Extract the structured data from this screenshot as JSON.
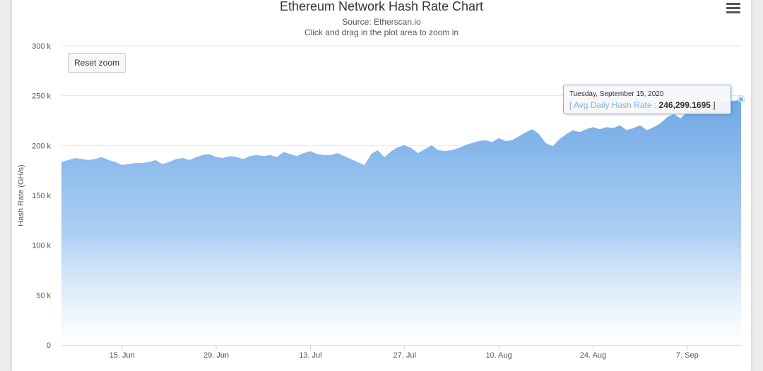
{
  "chart_data": {
    "type": "area",
    "title": "Ethereum Network Hash Rate Chart",
    "subtitle_source": "Source: Etherscan.io",
    "subtitle_hint": "Click and drag in the plot area to zoom in",
    "ylabel": "Hash Rate (GH/s)",
    "ylim": [
      0,
      300000
    ],
    "yticks": [
      {
        "value": 0,
        "label": "0"
      },
      {
        "value": 50000,
        "label": "50 k"
      },
      {
        "value": 100000,
        "label": "100 k"
      },
      {
        "value": 150000,
        "label": "150 k"
      },
      {
        "value": 200000,
        "label": "200 k"
      },
      {
        "value": 250000,
        "label": "250 k"
      },
      {
        "value": 300000,
        "label": "300 k"
      }
    ],
    "xlim": [
      "2020-06-06",
      "2020-09-15"
    ],
    "xticks": [
      {
        "date": "2020-06-15",
        "label": "15. Jun"
      },
      {
        "date": "2020-06-29",
        "label": "29. Jun"
      },
      {
        "date": "2020-07-13",
        "label": "13. Jul"
      },
      {
        "date": "2020-07-27",
        "label": "27. Jul"
      },
      {
        "date": "2020-08-10",
        "label": "10. Aug"
      },
      {
        "date": "2020-08-24",
        "label": "24. Aug"
      },
      {
        "date": "2020-09-07",
        "label": "7. Sep"
      }
    ],
    "grid": true,
    "legend": "none",
    "series": [
      {
        "name": "Avg Daily Hash Rate",
        "color": "#7cb5ec",
        "points": [
          [
            "2020-06-06",
            184000
          ],
          [
            "2020-06-07",
            186000
          ],
          [
            "2020-06-08",
            188000
          ],
          [
            "2020-06-09",
            187000
          ],
          [
            "2020-06-10",
            186000
          ],
          [
            "2020-06-11",
            187000
          ],
          [
            "2020-06-12",
            189000
          ],
          [
            "2020-06-13",
            186000
          ],
          [
            "2020-06-14",
            184000
          ],
          [
            "2020-06-15",
            181000
          ],
          [
            "2020-06-16",
            182000
          ],
          [
            "2020-06-17",
            183000
          ],
          [
            "2020-06-18",
            183000
          ],
          [
            "2020-06-19",
            184000
          ],
          [
            "2020-06-20",
            186000
          ],
          [
            "2020-06-21",
            182000
          ],
          [
            "2020-06-22",
            184000
          ],
          [
            "2020-06-23",
            187000
          ],
          [
            "2020-06-24",
            188000
          ],
          [
            "2020-06-25",
            186000
          ],
          [
            "2020-06-26",
            189000
          ],
          [
            "2020-06-27",
            191000
          ],
          [
            "2020-06-28",
            192000
          ],
          [
            "2020-06-29",
            189000
          ],
          [
            "2020-06-30",
            188000
          ],
          [
            "2020-07-01",
            190000
          ],
          [
            "2020-07-02",
            189000
          ],
          [
            "2020-07-03",
            187000
          ],
          [
            "2020-07-04",
            190000
          ],
          [
            "2020-07-05",
            191000
          ],
          [
            "2020-07-06",
            190000
          ],
          [
            "2020-07-07",
            191000
          ],
          [
            "2020-07-08",
            189000
          ],
          [
            "2020-07-09",
            194000
          ],
          [
            "2020-07-10",
            192000
          ],
          [
            "2020-07-11",
            190000
          ],
          [
            "2020-07-12",
            193000
          ],
          [
            "2020-07-13",
            195000
          ],
          [
            "2020-07-14",
            192000
          ],
          [
            "2020-07-15",
            191000
          ],
          [
            "2020-07-16",
            191000
          ],
          [
            "2020-07-17",
            193000
          ],
          [
            "2020-07-18",
            190000
          ],
          [
            "2020-07-19",
            187000
          ],
          [
            "2020-07-20",
            184000
          ],
          [
            "2020-07-21",
            181000
          ],
          [
            "2020-07-22",
            192000
          ],
          [
            "2020-07-23",
            196000
          ],
          [
            "2020-07-24",
            189000
          ],
          [
            "2020-07-25",
            195000
          ],
          [
            "2020-07-26",
            199000
          ],
          [
            "2020-07-27",
            201000
          ],
          [
            "2020-07-28",
            198000
          ],
          [
            "2020-07-29",
            193000
          ],
          [
            "2020-07-30",
            197000
          ],
          [
            "2020-07-31",
            201000
          ],
          [
            "2020-08-01",
            196000
          ],
          [
            "2020-08-02",
            195000
          ],
          [
            "2020-08-03",
            196000
          ],
          [
            "2020-08-04",
            198000
          ],
          [
            "2020-08-05",
            201000
          ],
          [
            "2020-08-06",
            203000
          ],
          [
            "2020-08-07",
            205000
          ],
          [
            "2020-08-08",
            206000
          ],
          [
            "2020-08-09",
            204000
          ],
          [
            "2020-08-10",
            208000
          ],
          [
            "2020-08-11",
            205000
          ],
          [
            "2020-08-12",
            206000
          ],
          [
            "2020-08-13",
            210000
          ],
          [
            "2020-08-14",
            214000
          ],
          [
            "2020-08-15",
            217000
          ],
          [
            "2020-08-16",
            212000
          ],
          [
            "2020-08-17",
            203000
          ],
          [
            "2020-08-18",
            200000
          ],
          [
            "2020-08-19",
            207000
          ],
          [
            "2020-08-20",
            212000
          ],
          [
            "2020-08-21",
            216000
          ],
          [
            "2020-08-22",
            214000
          ],
          [
            "2020-08-23",
            217000
          ],
          [
            "2020-08-24",
            219000
          ],
          [
            "2020-08-25",
            217000
          ],
          [
            "2020-08-26",
            219000
          ],
          [
            "2020-08-27",
            218000
          ],
          [
            "2020-08-28",
            221000
          ],
          [
            "2020-08-29",
            216000
          ],
          [
            "2020-08-30",
            218000
          ],
          [
            "2020-08-31",
            221000
          ],
          [
            "2020-09-01",
            216000
          ],
          [
            "2020-09-02",
            219000
          ],
          [
            "2020-09-03",
            223000
          ],
          [
            "2020-09-04",
            229000
          ],
          [
            "2020-09-05",
            232000
          ],
          [
            "2020-09-06",
            228000
          ],
          [
            "2020-09-07",
            234000
          ],
          [
            "2020-09-08",
            238000
          ],
          [
            "2020-09-09",
            240000
          ],
          [
            "2020-09-10",
            242000
          ],
          [
            "2020-09-11",
            243000
          ],
          [
            "2020-09-12",
            244000
          ],
          [
            "2020-09-13",
            245000
          ],
          [
            "2020-09-14",
            245500
          ],
          [
            "2020-09-15",
            246299.1695
          ]
        ]
      }
    ],
    "tooltip": {
      "date": "Tuesday, September 15, 2020",
      "open_bracket": "[",
      "series_label": "Avg Daily Hash Rate :",
      "value": "246,299.1695",
      "close_bracket": "]"
    }
  },
  "ui": {
    "reset_zoom_label": "Reset zoom",
    "menu_icon": "hamburger-menu-icon"
  }
}
